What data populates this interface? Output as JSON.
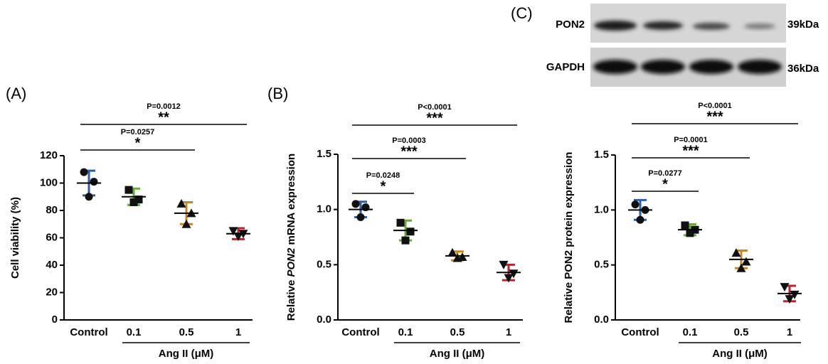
{
  "chart_data": [
    {
      "type": "dot",
      "panel": "(A)",
      "y_label": "Cell viability (%)",
      "categories": [
        "Control",
        "0.1",
        "0.5",
        "1"
      ],
      "group_label": "Ang II (μM)",
      "ylim": [
        0,
        120
      ],
      "yticks": [
        0,
        20,
        40,
        60,
        80,
        100,
        120
      ],
      "groups": [
        {
          "color": "#2e5fa3",
          "marker": "circle",
          "values": [
            108,
            101,
            90
          ],
          "mean": 100,
          "sd": 9
        },
        {
          "color": "#6aaa3a",
          "marker": "square",
          "values": [
            95,
            88,
            86
          ],
          "mean": 90,
          "sd": 6
        },
        {
          "color": "#c8861e",
          "marker": "triangle",
          "values": [
            85,
            78,
            70
          ],
          "mean": 78,
          "sd": 8,
          "comparison": {
            "p": "P=0.0257",
            "stars": "*"
          }
        },
        {
          "color": "#b52430",
          "marker": "triangle-down",
          "values": [
            65,
            63,
            61
          ],
          "mean": 63,
          "sd": 4,
          "comparison": {
            "p": "P=0.0012",
            "stars": "**"
          }
        }
      ]
    },
    {
      "type": "dot",
      "panel": "(B)",
      "y_label": {
        "before": "Relative ",
        "italic": "PON2",
        "after": " mRNA expression"
      },
      "categories": [
        "Control",
        "0.1",
        "0.5",
        "1"
      ],
      "group_label": "Ang II (μM)",
      "ylim": [
        0,
        1.5
      ],
      "yticks": [
        {
          "value": 0,
          "label": "0.0"
        },
        0.5,
        {
          "value": 1,
          "label": "1.0"
        },
        1.5
      ],
      "groups": [
        {
          "color": "#2e5fa3",
          "marker": "circle",
          "values": [
            1.05,
            1.02,
            0.93
          ],
          "mean": 1.0,
          "sd": 0.07
        },
        {
          "color": "#6aaa3a",
          "marker": "square",
          "values": [
            0.88,
            0.8,
            0.72
          ],
          "mean": 0.81,
          "sd": 0.09,
          "comparison": {
            "p": "P=0.0248",
            "stars": "*"
          }
        },
        {
          "color": "#c8861e",
          "marker": "triangle",
          "values": [
            0.61,
            0.57,
            0.56
          ],
          "mean": 0.58,
          "sd": 0.04,
          "comparison": {
            "p": "P=0.0003",
            "stars": "***"
          }
        },
        {
          "color": "#b52430",
          "marker": "triangle-down",
          "values": [
            0.5,
            0.42,
            0.38
          ],
          "mean": 0.43,
          "sd": 0.07,
          "comparison": {
            "p": "P<0.0001",
            "stars": "***"
          }
        }
      ]
    },
    {
      "type": "dot",
      "panel": "(C)",
      "y_label": "Relative PON2 protein expression",
      "categories": [
        "Control",
        "0.1",
        "0.5",
        "1"
      ],
      "group_label": "Ang II (μM)",
      "ylim": [
        0,
        1.5
      ],
      "yticks": [
        {
          "value": 0,
          "label": "0.0"
        },
        0.5,
        {
          "value": 1,
          "label": "1.0"
        },
        1.5
      ],
      "groups": [
        {
          "color": "#2e5fa3",
          "marker": "circle",
          "values": [
            1.05,
            1.0,
            0.91
          ],
          "mean": 1.0,
          "sd": 0.09
        },
        {
          "color": "#6aaa3a",
          "marker": "square",
          "values": [
            0.86,
            0.82,
            0.79
          ],
          "mean": 0.82,
          "sd": 0.05,
          "comparison": {
            "p": "P=0.0277",
            "stars": "*"
          }
        },
        {
          "color": "#c8861e",
          "marker": "triangle",
          "values": [
            0.61,
            0.53,
            0.47
          ],
          "mean": 0.55,
          "sd": 0.08,
          "comparison": {
            "p": "P=0.0001",
            "stars": "***"
          }
        },
        {
          "color": "#b52430",
          "marker": "triangle-down",
          "values": [
            0.3,
            0.23,
            0.19
          ],
          "mean": 0.24,
          "sd": 0.07,
          "comparison": {
            "p": "P<0.0001",
            "stars": "***"
          }
        }
      ]
    }
  ],
  "blot": {
    "rows": [
      {
        "label": "PON2",
        "size": "39kDa"
      },
      {
        "label": "GAPDH",
        "size": "36kDa"
      }
    ]
  }
}
